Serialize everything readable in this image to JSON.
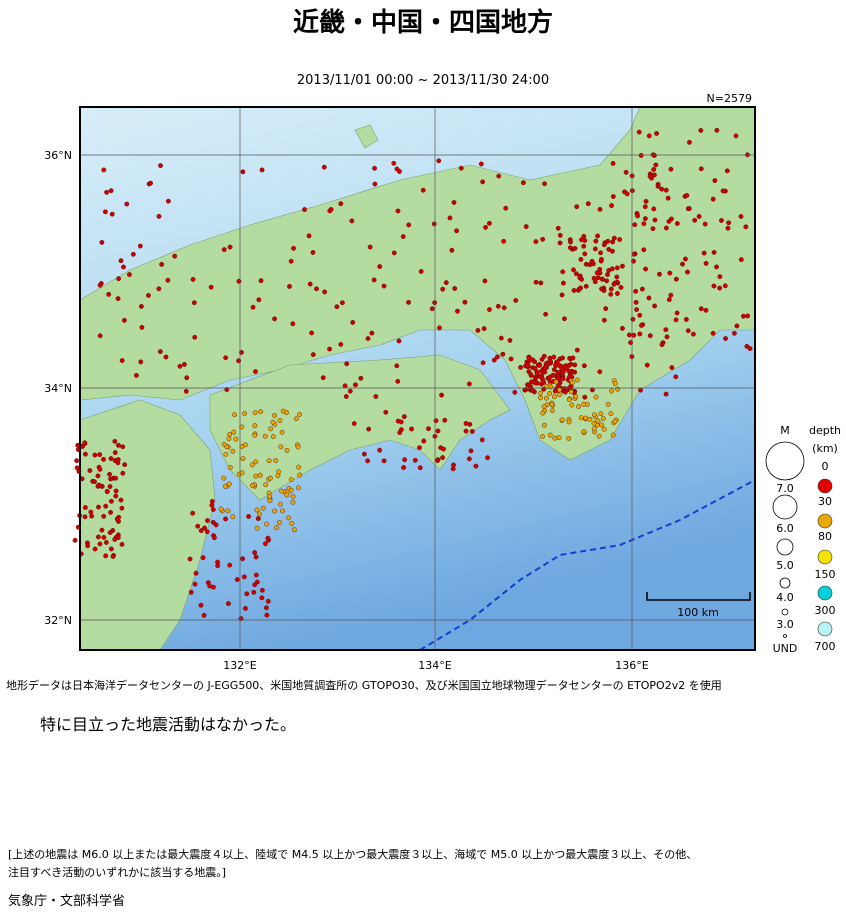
{
  "header": {
    "title": "近畿・中国・四国地方",
    "period": "2013/11/01 00:00 ~ 2013/11/30 24:00"
  },
  "map": {
    "count": "N=2579",
    "lat_labels": [
      "36°N",
      "34°N",
      "32°N"
    ],
    "lon_labels": [
      "132°E",
      "134°E",
      "136°E"
    ],
    "scale": "100 km"
  },
  "legend": {
    "magnitude_title": "M",
    "magnitudes": [
      "7.0",
      "6.0",
      "5.0",
      "4.0",
      "3.0"
    ],
    "depth_title": [
      "depth",
      "(km)"
    ],
    "depths": [
      "0",
      "30",
      "80",
      "150",
      "300",
      "700"
    ],
    "undetermined": "UND"
  },
  "source_note": "地形データは日本海洋データセンターの J-EGG500、米国地質調査所の GTOPO30、及び米国国立地球物理データセンターの ETOPO2v2 を使用",
  "summary": "特に目立った地震活動はなかった。",
  "criteria": [
    "[上述の地震は M6.0 以上または最大震度４以上、陸域で M4.5 以上かつ最大震度３以上、海域で M5.0 以上かつ最大震度３以上、その他、",
    "注目すべき活動のいずれかに該当する地震。]"
  ],
  "footer": "気象庁・文部科学省"
}
